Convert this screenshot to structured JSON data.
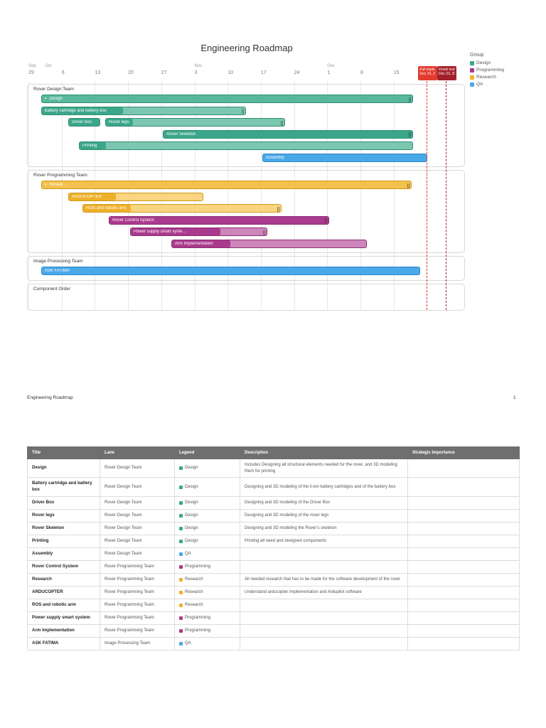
{
  "page": {
    "title": "Engineering Roadmap",
    "footer_left": "Engineering Roadmap",
    "page_number": "1"
  },
  "legend": {
    "title": "Group",
    "items": [
      {
        "label": "Design",
        "key": "design"
      },
      {
        "label": "Programming",
        "key": "programming"
      },
      {
        "label": "Research",
        "key": "research"
      },
      {
        "label": "QA",
        "key": "qa"
      }
    ]
  },
  "colors": {
    "design": {
      "light": "#7cc7b0",
      "fill": "#3ba68a",
      "group": "#57b89b",
      "border": "#2e8e74"
    },
    "research": {
      "light": "#f8d57e",
      "fill": "#eeb02a",
      "group": "#f3c14e",
      "border": "#cf9a1d"
    },
    "programming": {
      "light": "#cd86ba",
      "fill": "#aa3a8d",
      "group": "#b2489c",
      "border": "#8a2c72"
    },
    "qa": {
      "light": "#49a8e8",
      "fill": "#49a8e8",
      "group": "#49a8e8",
      "border": "#2f88c6"
    }
  },
  "chart_data": {
    "type": "gantt",
    "title": "Engineering Roadmap",
    "timeline": {
      "start": "Sep 29",
      "unit": "week",
      "months": [
        {
          "label": "Sep",
          "week": 0
        },
        {
          "label": "Oct",
          "week": 0.5
        },
        {
          "label": "Nov",
          "week": 5.0
        },
        {
          "label": "Dec",
          "week": 9.0
        }
      ],
      "weeks": [
        "29",
        "6",
        "13",
        "20",
        "27",
        "3",
        "10",
        "17",
        "24",
        "1",
        "8",
        "15"
      ]
    },
    "milestones": [
      {
        "label": "Full imple",
        "date": "Dec 15, 2",
        "color": "#e23b30",
        "week": 12.0
      },
      {
        "label": "Finish testin",
        "date": "Dec 23, 20",
        "color": "#a32029",
        "week": 12.57
      }
    ],
    "lanes": [
      {
        "name": "Rover Design Team",
        "rows": [
          [
            {
              "label": "Design",
              "group": "design",
              "type": "group",
              "chevron": true,
              "handle": true,
              "start": 0.36,
              "end": 11.56,
              "start_date": "Oct 1",
              "end_date": "Dec 18"
            }
          ],
          [
            {
              "label": "Battery cartridge and battery box",
              "group": "design",
              "progress": 0.4,
              "handle": true,
              "start": 0.36,
              "end": 6.53,
              "start_date": "Oct 1",
              "end_date": "Nov 13"
            }
          ],
          [
            {
              "label": "Driver Box",
              "group": "design",
              "progress": 1,
              "start": 1.18,
              "end": 2.14,
              "start_date": "Oct 7",
              "end_date": "Oct 14"
            },
            {
              "label": "Rover legs",
              "group": "design",
              "progress": 0.15,
              "handle": true,
              "start": 2.29,
              "end": 7.71,
              "start_date": "Oct 15",
              "end_date": "Nov 22"
            }
          ],
          [
            {
              "label": "Rover Skeleton",
              "group": "design",
              "progress": 1,
              "handle": true,
              "start": 4.03,
              "end": 11.56,
              "start_date": "Oct 27",
              "end_date": "Dec 18"
            }
          ],
          [
            {
              "label": "Printing",
              "group": "design",
              "progress": 0.08,
              "start": 1.5,
              "end": 11.56,
              "start_date": "Oct 9",
              "end_date": "Dec 18"
            }
          ],
          [
            {
              "label": "Assembly",
              "group": "qa",
              "progress": 1,
              "start": 7.02,
              "end": 12.0,
              "start_date": "Nov 17",
              "end_date": "Dec 22"
            }
          ]
        ]
      },
      {
        "name": "Rover Programming Team",
        "rows": [
          [
            {
              "label": "Resear…",
              "group": "research",
              "type": "group",
              "chevron": true,
              "handle": true,
              "start": 0.36,
              "end": 11.51,
              "start_date": "Oct 1",
              "end_date": "Dec 17"
            }
          ],
          [
            {
              "label": "ARDUCOPTER",
              "group": "research",
              "progress": 0.35,
              "start": 1.18,
              "end": 5.25,
              "start_date": "Oct 7",
              "end_date": "Nov 4"
            }
          ],
          [
            {
              "label": "ROS and robotic arm",
              "group": "research",
              "progress": 0.24,
              "handle": true,
              "start": 1.61,
              "end": 7.6,
              "start_date": "Oct 10",
              "end_date": "Nov 21"
            }
          ],
          [
            {
              "label": "Rover Control System",
              "group": "programming",
              "progress": 1,
              "handle": true,
              "start": 2.4,
              "end": 9.04,
              "start_date": "Oct 16",
              "end_date": "Dec 1"
            }
          ],
          [
            {
              "label": "Power supply smart syste…",
              "group": "programming",
              "progress": 0.66,
              "handle": true,
              "start": 3.04,
              "end": 7.17,
              "start_date": "Oct 20",
              "end_date": "Nov 18"
            }
          ],
          [
            {
              "label": "Arm Implementation",
              "group": "programming",
              "progress": 0.3,
              "start": 4.28,
              "end": 10.17,
              "start_date": "Oct 29",
              "end_date": "Dec 9"
            }
          ]
        ]
      },
      {
        "name": "Image Processing Team",
        "rows": [
          [
            {
              "label": "ASK FATIMA",
              "group": "qa",
              "progress": 1,
              "start": 0.36,
              "end": 11.78,
              "start_date": "Oct 1",
              "end_date": "Dec 19"
            }
          ]
        ]
      },
      {
        "name": "Component Order",
        "rows": []
      }
    ]
  },
  "table": {
    "headers": [
      "Title",
      "Lane",
      "Legend",
      "Description",
      "Strategic Importance"
    ],
    "rows": [
      {
        "title": "Design",
        "lane": "Rover Design Team",
        "legend": "Design",
        "legend_key": "design",
        "description": "Includes Designing all structural elements needed for the rover, and 3D modeling them for printing",
        "importance": ""
      },
      {
        "title": "Battery cartridge and battery box",
        "lane": "Rover Design Team",
        "legend": "Design",
        "legend_key": "design",
        "description": "Designing and 3D modeling of the li-ion battery cartridges and of the battery box",
        "importance": ""
      },
      {
        "title": "Driver Box",
        "lane": "Rover Design Team",
        "legend": "Design",
        "legend_key": "design",
        "description": "Designing and 3D modeling of the Driver Box",
        "importance": ""
      },
      {
        "title": "Rover legs",
        "lane": "Rover Design Team",
        "legend": "Design",
        "legend_key": "design",
        "description": "Designing and 3D modeling of the rover legs",
        "importance": ""
      },
      {
        "title": "Rover Skeleton",
        "lane": "Rover Design Team",
        "legend": "Design",
        "legend_key": "design",
        "description": "Designing and 3D modeling the Rover's skeleton",
        "importance": ""
      },
      {
        "title": "Printing",
        "lane": "Rover Design Team",
        "legend": "Design",
        "legend_key": "design",
        "description": "Printing all need and designed components",
        "importance": ""
      },
      {
        "title": "Assembly",
        "lane": "Rover Design Team",
        "legend": "QA",
        "legend_key": "qa",
        "description": "",
        "importance": ""
      },
      {
        "title": "Rover Control System",
        "lane": "Rover Programming Team",
        "legend": "Programming",
        "legend_key": "programming",
        "description": "",
        "importance": ""
      },
      {
        "title": "Research",
        "lane": "Rover Programming Team",
        "legend": "Research",
        "legend_key": "research",
        "description": "All needed research that has to be made for the software development of the rover",
        "importance": ""
      },
      {
        "title": "ARDUCOPTER",
        "lane": "Rover Programming Team",
        "legend": "Research",
        "legend_key": "research",
        "description": "Understand arducopter implementation and Ardupilot software",
        "importance": ""
      },
      {
        "title": "ROS and robotic arm",
        "lane": "Rover Programming Team",
        "legend": "Research",
        "legend_key": "research",
        "description": "",
        "importance": ""
      },
      {
        "title": "Power supply smart system",
        "lane": "Rover Programming Team",
        "legend": "Programming",
        "legend_key": "programming",
        "description": "",
        "importance": ""
      },
      {
        "title": "Arm Implementation",
        "lane": "Rover Programming Team",
        "legend": "Programming",
        "legend_key": "programming",
        "description": "",
        "importance": ""
      },
      {
        "title": "ASK FATIMA",
        "lane": "Image Processing Team",
        "legend": "QA",
        "legend_key": "qa",
        "description": "",
        "importance": ""
      }
    ]
  }
}
